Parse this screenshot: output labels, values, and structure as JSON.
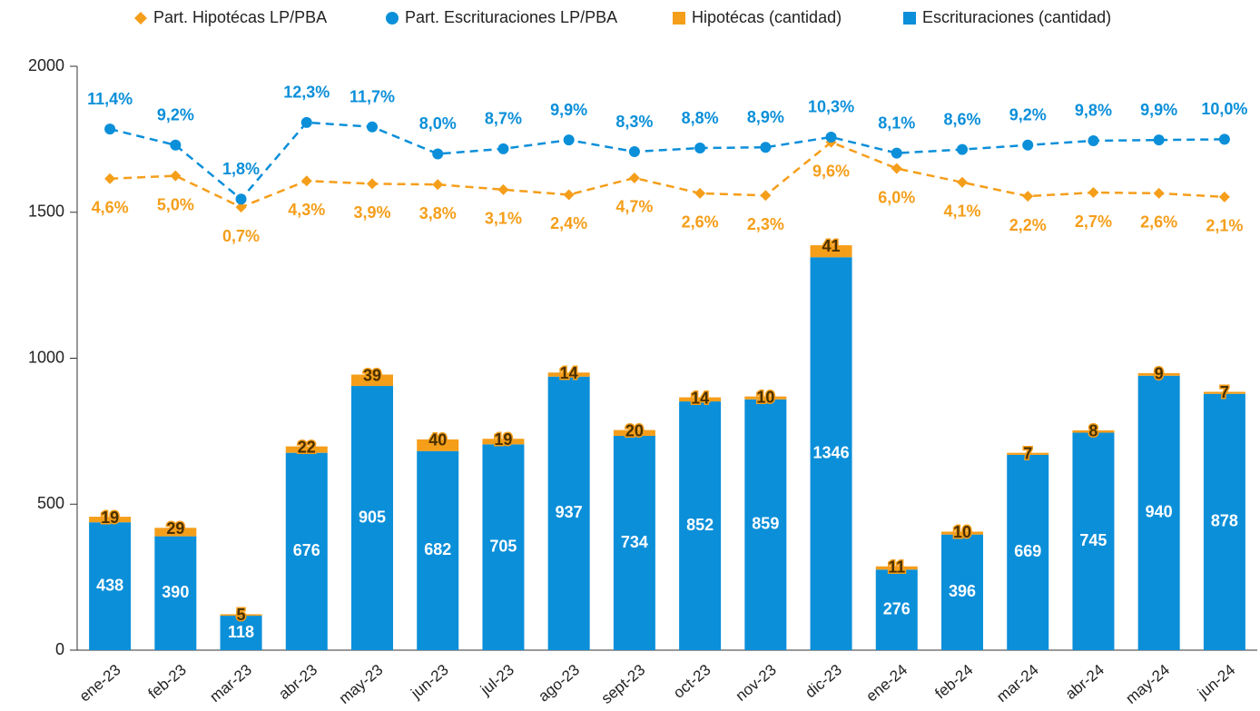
{
  "chart_data": {
    "type": "bar",
    "categories": [
      "ene-23",
      "feb-23",
      "mar-23",
      "abr-23",
      "may-23",
      "jun-23",
      "jul-23",
      "ago-23",
      "sept-23",
      "oct-23",
      "nov-23",
      "dic-23",
      "ene-24",
      "feb-24",
      "mar-24",
      "abr-24",
      "may-24",
      "jun-24"
    ],
    "series": [
      {
        "name": "Part. Hipotécas LP/PBA",
        "type": "line",
        "axis": "y2",
        "marker": "diamond",
        "dashed": true,
        "color": "#f59e1a",
        "values": [
          4.6,
          5.0,
          0.7,
          4.3,
          3.9,
          3.8,
          3.1,
          2.4,
          4.7,
          2.6,
          2.3,
          9.6,
          6.0,
          4.1,
          2.2,
          2.7,
          2.6,
          2.1
        ],
        "value_labels": [
          "4,6%",
          "5,0%",
          "0,7%",
          "4,3%",
          "3,9%",
          "3,8%",
          "3,1%",
          "2,4%",
          "4,7%",
          "2,6%",
          "2,3%",
          "9,6%",
          "6,0%",
          "4,1%",
          "2,2%",
          "2,7%",
          "2,6%",
          "2,1%"
        ]
      },
      {
        "name": "Part. Escrituraciones LP/PBA",
        "type": "line",
        "axis": "y2",
        "marker": "circle",
        "dashed": true,
        "color": "#0b8fd9",
        "values": [
          11.4,
          9.2,
          1.8,
          12.3,
          11.7,
          8.0,
          8.7,
          9.9,
          8.3,
          8.8,
          8.9,
          10.3,
          8.1,
          8.6,
          9.2,
          9.8,
          9.9,
          10.0
        ],
        "value_labels": [
          "11,4%",
          "9,2%",
          "1,8%",
          "12,3%",
          "11,7%",
          "8,0%",
          "8,7%",
          "9,9%",
          "8,3%",
          "8,8%",
          "8,9%",
          "10,3%",
          "8,1%",
          "8,6%",
          "9,2%",
          "9,8%",
          "9,9%",
          "10,0%"
        ]
      },
      {
        "name": "Hipotécas (cantidad)",
        "type": "bar",
        "color": "#f59e1a",
        "values": [
          19,
          29,
          5,
          22,
          39,
          40,
          19,
          14,
          20,
          14,
          10,
          41,
          11,
          10,
          7,
          8,
          9,
          7
        ]
      },
      {
        "name": "Escrituraciones (cantidad)",
        "type": "bar",
        "color": "#0b8fd9",
        "values": [
          438,
          390,
          118,
          676,
          905,
          682,
          705,
          937,
          734,
          852,
          859,
          1346,
          276,
          396,
          669,
          745,
          940,
          878
        ]
      }
    ],
    "stacked": true,
    "ylim": [
      0,
      2000
    ],
    "yticks": [
      0,
      500,
      1000,
      1500,
      2000
    ],
    "y2lim": [
      -60,
      20
    ],
    "legend": "top"
  }
}
